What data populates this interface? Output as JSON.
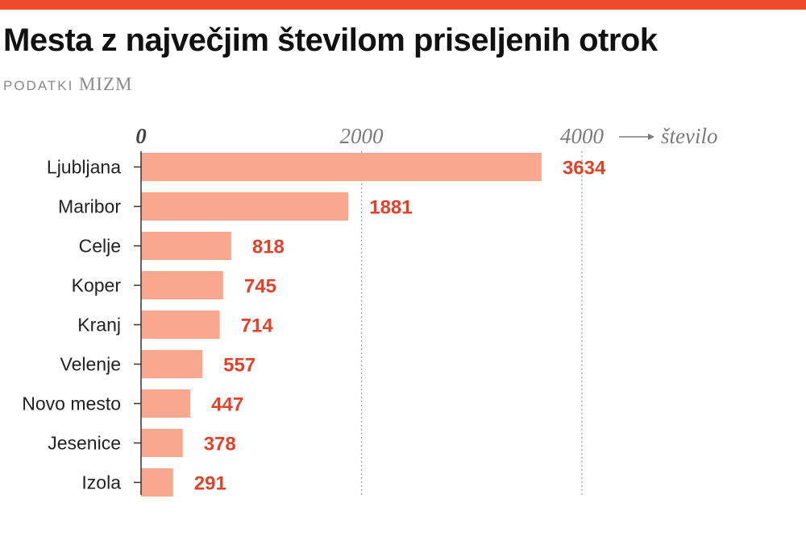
{
  "header": {
    "title": "Mesta z največjim številom priseljenih otrok",
    "source_label": "PODATKI",
    "source_name": "MIZM"
  },
  "colors": {
    "accent_bar": "#f04a2a",
    "bar": "#f7a88f",
    "value_text": "#e2412a",
    "axis": "#333333",
    "grid": "#9a9a9a"
  },
  "chart_data": {
    "type": "bar",
    "orientation": "horizontal",
    "title": "Mesta z največjim številom priseljenih otrok",
    "xlabel": "število",
    "ylabel": "",
    "xlim": [
      0,
      4000
    ],
    "x_ticks": [
      0,
      2000,
      4000
    ],
    "grid": true,
    "categories": [
      "Ljubljana",
      "Maribor",
      "Celje",
      "Koper",
      "Kranj",
      "Velenje",
      "Novo mesto",
      "Jesenice",
      "Izola"
    ],
    "values": [
      3634,
      1881,
      818,
      745,
      714,
      557,
      447,
      378,
      291
    ]
  }
}
